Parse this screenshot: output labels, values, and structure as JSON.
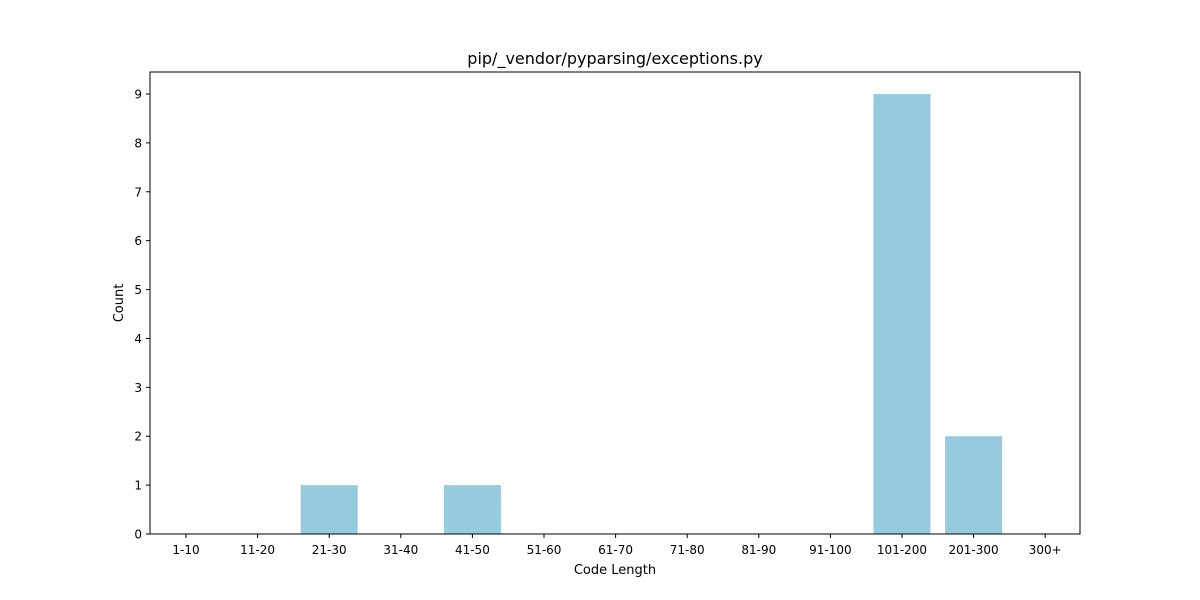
{
  "chart_data": {
    "type": "bar",
    "title": "pip/_vendor/pyparsing/exceptions.py",
    "xlabel": "Code Length",
    "ylabel": "Count",
    "categories": [
      "1-10",
      "11-20",
      "21-30",
      "31-40",
      "41-50",
      "51-60",
      "61-70",
      "71-80",
      "81-90",
      "91-100",
      "101-200",
      "201-300",
      "300+"
    ],
    "values": [
      0,
      0,
      1,
      0,
      1,
      0,
      0,
      0,
      0,
      0,
      9,
      2,
      0
    ],
    "ylim": [
      0,
      9.45
    ],
    "yticks": [
      "0",
      "1",
      "2",
      "3",
      "4",
      "5",
      "6",
      "7",
      "8",
      "9"
    ],
    "bar_color": "#96cade",
    "grid": false,
    "legend": "none"
  }
}
